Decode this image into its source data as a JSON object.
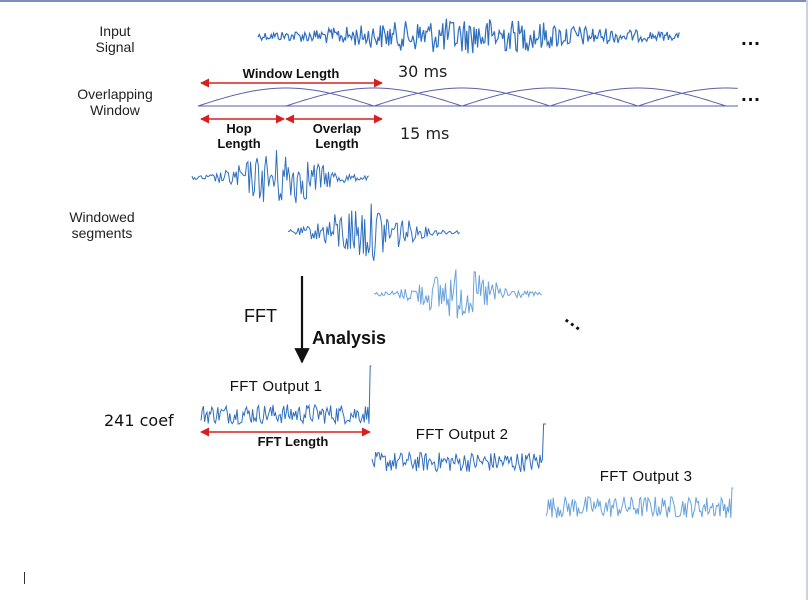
{
  "labels": {
    "input_signal": "Input\nSignal",
    "overlapping_window": "Overlapping\nWindow",
    "window_length": "Window Length",
    "window_ms": "30 ms",
    "hop_length": "Hop\nLength",
    "overlap_length": "Overlap\nLength",
    "hop_ms": "15 ms",
    "windowed_segments": "Windowed\nsegments",
    "fft": "FFT",
    "analysis": "Analysis",
    "fft_output_1": "FFT Output 1",
    "fft_output_2": "FFT Output 2",
    "fft_output_3": "FFT Output 3",
    "coef": "241 coef",
    "fft_length": "FFT Length",
    "ellipsis": "..."
  },
  "colors": {
    "signal": "#2f6fc0",
    "signal_light": "#6aa3dc",
    "window_curve": "#5a5fa8",
    "arrow_red": "#d62020",
    "arrow_black": "#111111"
  }
}
